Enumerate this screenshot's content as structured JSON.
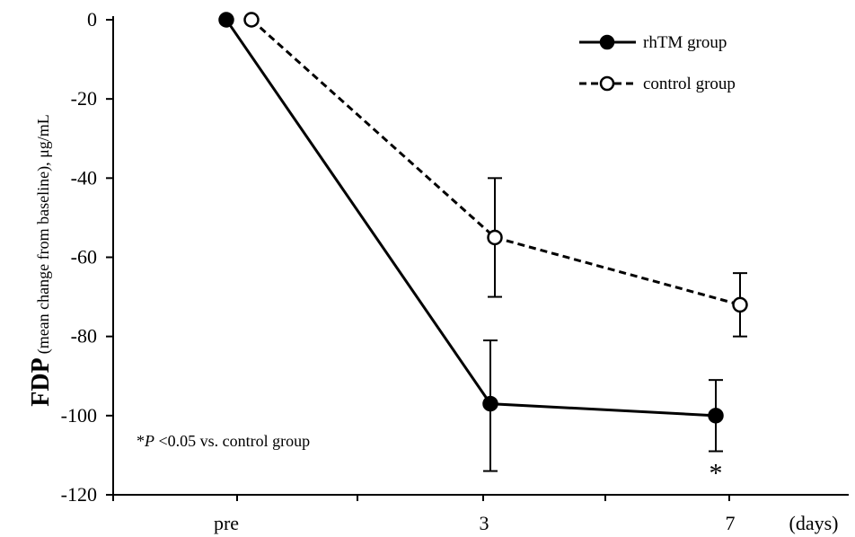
{
  "chart_data": {
    "type": "line",
    "categories": [
      "pre",
      "3",
      "7"
    ],
    "x_unit": "(days)",
    "ylabel_main": "FDP",
    "ylabel_sub": "(mean change from baseline), μg/mL",
    "ylim": [
      -120,
      0
    ],
    "yticks": [
      0,
      -20,
      -40,
      -60,
      -80,
      -100,
      -120
    ],
    "yticks_labels": [
      "0",
      "-20",
      "-40",
      "-60",
      "-80",
      "-100",
      "-120"
    ],
    "grid": false,
    "legend_position": "top-right",
    "series": [
      {
        "name": "rhTM group",
        "style": "solid",
        "marker": "filled-circle",
        "values": [
          0,
          -97,
          -100
        ],
        "err_low": [
          0,
          -114,
          -109
        ],
        "err_high": [
          0,
          -81,
          -91
        ]
      },
      {
        "name": "control group",
        "style": "dashed",
        "marker": "open-circle",
        "values": [
          0,
          -55,
          -72
        ],
        "err_low": [
          0,
          -70,
          -80
        ],
        "err_high": [
          0,
          -40,
          -64
        ]
      }
    ],
    "annotation": {
      "prefix": "*",
      "italic": "P",
      "rest": " <0.05 vs. control group"
    },
    "significance_marker": {
      "symbol": "*",
      "category": "7",
      "series": "rhTM group"
    },
    "colors": {
      "line": "#000000",
      "background": "#ffffff"
    }
  }
}
